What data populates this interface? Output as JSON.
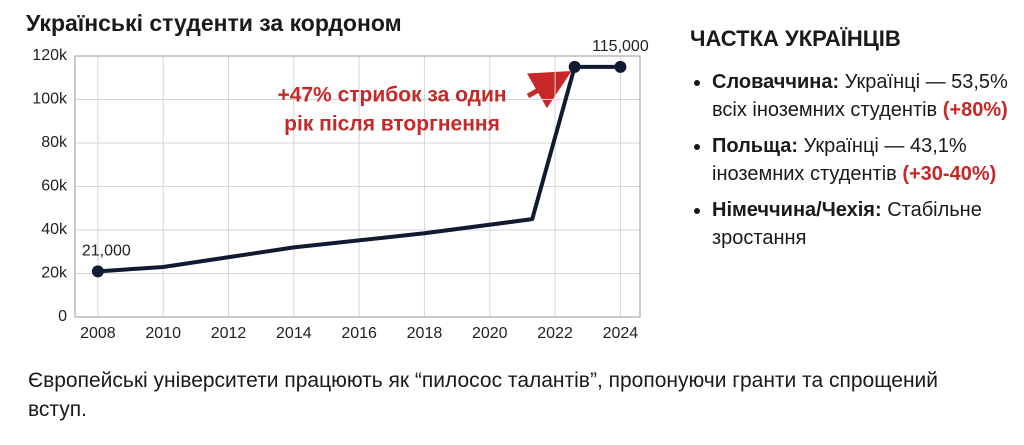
{
  "chart_data": {
    "type": "line",
    "title": "Українські студенти за кордоном",
    "x": [
      2008,
      2010,
      2014,
      2018,
      2021.3,
      2022.6,
      2024
    ],
    "values": [
      21000,
      23000,
      32000,
      38500,
      45000,
      115000,
      115000
    ],
    "value_labels": [
      "21,000",
      null,
      null,
      null,
      null,
      null,
      "115,000"
    ],
    "color": "#111a33",
    "xlim": [
      2007.3,
      2024.6
    ],
    "ylim": [
      0,
      120000
    ],
    "xticks": [
      2008,
      2010,
      2012,
      2014,
      2016,
      2018,
      2020,
      2022,
      2024
    ],
    "yticks": [
      0,
      {
        "value": 20000,
        "label": "20k"
      },
      {
        "value": 40000,
        "label": "40k"
      },
      {
        "value": 60000,
        "label": "60k"
      },
      {
        "value": 80000,
        "label": "80k"
      },
      {
        "value": 100000,
        "label": "100k"
      },
      {
        "value": 120000,
        "label": "120k"
      }
    ],
    "grid": true,
    "annotation": {
      "lines": [
        "+47% стрибок за один",
        "рік після вторгнення"
      ],
      "color": "#c62828"
    }
  },
  "side_panel": {
    "title": "ЧАСТКА УКРАЇНЦІВ",
    "items": [
      {
        "country": "Словаччина:",
        "text": "Українці — 53,5% всіх іноземних студентів",
        "change": "(+80%)"
      },
      {
        "country": "Польща:",
        "text": "Українці — 43,1% іноземних студентів",
        "change": "(+30-40%)"
      },
      {
        "country": "Німеччина/Чехія:",
        "text": "Стабільне зростання"
      }
    ]
  },
  "footer": "Європейські університети працюють як “пилосос талантів”, пропонуючи гранти та спрощений вступ."
}
